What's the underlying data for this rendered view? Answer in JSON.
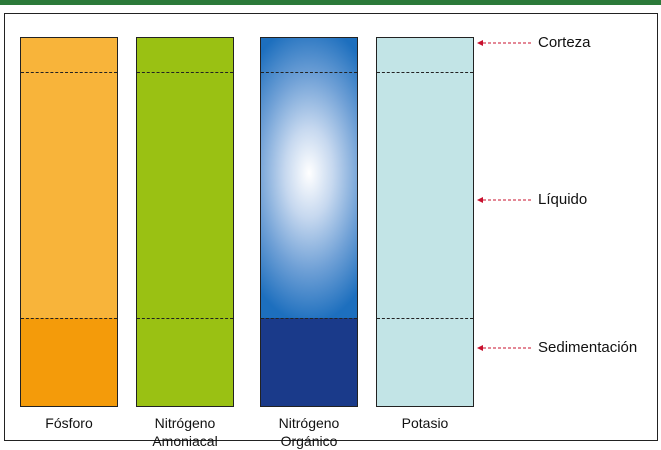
{
  "columns": [
    {
      "label_line1": "Fósforo",
      "label_line2": "",
      "top_color": "#f8b43a",
      "bottom_color": "#f49b0a"
    },
    {
      "label_line1": "Nitrógeno",
      "label_line2": "Amoniacal",
      "top_color": "#9ac113",
      "bottom_color": "#9ac113"
    },
    {
      "label_line1": "Nitrógeno",
      "label_line2": "Orgánico",
      "top_color": "#1d6fbe",
      "center_color": "#ffffff",
      "bottom_color": "#1a3a8a"
    },
    {
      "label_line1": "Potasio",
      "label_line2": "",
      "top_color": "#c2e4e6",
      "bottom_color": "#c2e4e6"
    }
  ],
  "layers": {
    "top": "Corteza",
    "middle": "Líquido",
    "bottom": "Sedimentación"
  },
  "colors": {
    "frame": "#222222",
    "topbar": "#2c7a3a",
    "arrow": "#c8102e"
  }
}
